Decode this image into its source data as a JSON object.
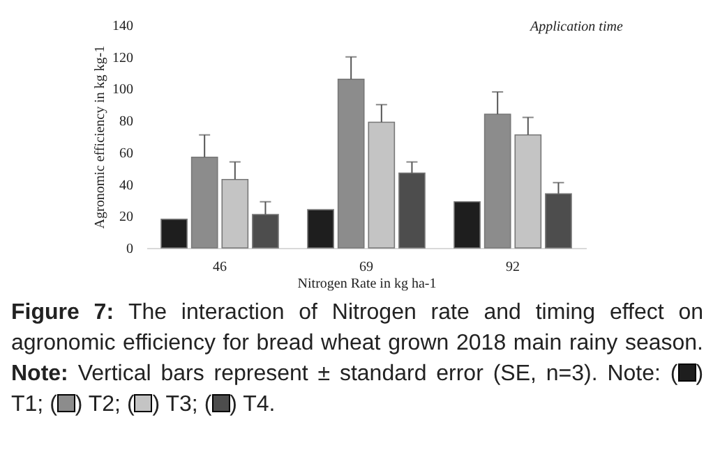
{
  "chart_data": {
    "type": "bar",
    "xlabel": "Nitrogen Rate in kg ha-1",
    "ylabel": "Agronomic efficiency in kg kg-1",
    "legend_title": "Application time",
    "categories": [
      "46",
      "69",
      "92"
    ],
    "series": [
      {
        "color": "#1e1e1e",
        "values": [
          18,
          24,
          29
        ]
      },
      {
        "color": "#8c8c8c",
        "values": [
          57,
          106,
          84
        ],
        "errors": [
          [
            57,
            71
          ],
          [
            106,
            120
          ],
          [
            84,
            98
          ]
        ]
      },
      {
        "color": "#c4c4c4",
        "values": [
          43,
          79,
          71
        ],
        "errors": [
          [
            43,
            54
          ],
          [
            79,
            90
          ],
          [
            71,
            82
          ]
        ]
      },
      {
        "color": "#4d4d4d",
        "values": [
          21,
          47,
          34
        ],
        "errors": [
          [
            21,
            29
          ],
          [
            47,
            54
          ],
          [
            34,
            41
          ]
        ]
      }
    ],
    "ylim": [
      0,
      140
    ],
    "yticks": [
      0,
      20,
      40,
      60,
      80,
      100,
      120,
      140
    ],
    "annotations": [
      "Figure 7:",
      "The interaction of Nitrogen rate and timing   effect on agronomic efficiency for bread wheat grown 2018 main rainy season.",
      "Note:",
      "Vertical bars represent ± standard error (SE, n=3). Note: (",
      ") T1; (",
      ") T2; (",
      ") T3; (",
      ") T4."
    ]
  }
}
